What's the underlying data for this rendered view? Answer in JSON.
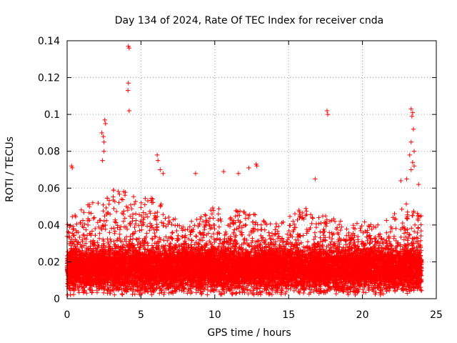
{
  "chart_data": {
    "type": "scatter",
    "title": "Day 134 of 2024, Rate Of TEC Index for receiver cnda",
    "xlabel": "GPS time / hours",
    "ylabel": "ROTI / TECUs",
    "xlim": [
      0,
      25
    ],
    "ylim": [
      0,
      0.14
    ],
    "x_ticks": [
      0,
      5,
      10,
      15,
      20,
      25
    ],
    "y_ticks": [
      0,
      0.02,
      0.04,
      0.06,
      0.08,
      0.1,
      0.12,
      0.14
    ],
    "x_tick_labels": [
      "0",
      "5",
      "10",
      "15",
      "20",
      "25"
    ],
    "y_tick_labels": [
      "0",
      "0.02",
      "0.04",
      "0.06",
      "0.08",
      "0.1",
      "0.12",
      "0.14"
    ],
    "grid": true,
    "marker": "plus",
    "color": "#ff0000",
    "point_count": 12000,
    "time_range": [
      0,
      24
    ],
    "baseline": {
      "center": 0.016,
      "spread": 0.0055,
      "min": 0.002
    },
    "envelope": [
      {
        "x": 0.0,
        "y": 0.045
      },
      {
        "x": 1.0,
        "y": 0.05
      },
      {
        "x": 2.0,
        "y": 0.055
      },
      {
        "x": 3.0,
        "y": 0.06
      },
      {
        "x": 4.0,
        "y": 0.058
      },
      {
        "x": 5.0,
        "y": 0.055
      },
      {
        "x": 6.0,
        "y": 0.055
      },
      {
        "x": 7.0,
        "y": 0.045
      },
      {
        "x": 8.0,
        "y": 0.042
      },
      {
        "x": 9.0,
        "y": 0.045
      },
      {
        "x": 10.0,
        "y": 0.05
      },
      {
        "x": 11.0,
        "y": 0.048
      },
      {
        "x": 12.0,
        "y": 0.05
      },
      {
        "x": 13.0,
        "y": 0.045
      },
      {
        "x": 14.0,
        "y": 0.04
      },
      {
        "x": 15.0,
        "y": 0.045
      },
      {
        "x": 16.0,
        "y": 0.05
      },
      {
        "x": 17.0,
        "y": 0.045
      },
      {
        "x": 18.0,
        "y": 0.045
      },
      {
        "x": 19.0,
        "y": 0.04
      },
      {
        "x": 20.0,
        "y": 0.042
      },
      {
        "x": 21.0,
        "y": 0.04
      },
      {
        "x": 22.0,
        "y": 0.045
      },
      {
        "x": 23.0,
        "y": 0.052
      },
      {
        "x": 24.0,
        "y": 0.045
      }
    ],
    "outliers": [
      {
        "x": 0.3,
        "y": 0.072
      },
      {
        "x": 0.35,
        "y": 0.071
      },
      {
        "x": 2.35,
        "y": 0.09
      },
      {
        "x": 2.45,
        "y": 0.088
      },
      {
        "x": 2.5,
        "y": 0.085
      },
      {
        "x": 2.55,
        "y": 0.097
      },
      {
        "x": 2.6,
        "y": 0.095
      },
      {
        "x": 2.5,
        "y": 0.08
      },
      {
        "x": 2.4,
        "y": 0.075
      },
      {
        "x": 4.15,
        "y": 0.137
      },
      {
        "x": 4.2,
        "y": 0.136
      },
      {
        "x": 4.15,
        "y": 0.117
      },
      {
        "x": 4.12,
        "y": 0.113
      },
      {
        "x": 4.2,
        "y": 0.102
      },
      {
        "x": 6.1,
        "y": 0.078
      },
      {
        "x": 6.15,
        "y": 0.075
      },
      {
        "x": 6.3,
        "y": 0.07
      },
      {
        "x": 6.5,
        "y": 0.068
      },
      {
        "x": 8.7,
        "y": 0.068
      },
      {
        "x": 10.6,
        "y": 0.069
      },
      {
        "x": 11.6,
        "y": 0.068
      },
      {
        "x": 12.3,
        "y": 0.071
      },
      {
        "x": 12.8,
        "y": 0.073
      },
      {
        "x": 12.85,
        "y": 0.072
      },
      {
        "x": 17.6,
        "y": 0.102
      },
      {
        "x": 17.65,
        "y": 0.1
      },
      {
        "x": 16.8,
        "y": 0.065
      },
      {
        "x": 23.3,
        "y": 0.103
      },
      {
        "x": 23.4,
        "y": 0.101
      },
      {
        "x": 23.35,
        "y": 0.099
      },
      {
        "x": 23.45,
        "y": 0.092
      },
      {
        "x": 23.3,
        "y": 0.085
      },
      {
        "x": 23.5,
        "y": 0.08
      },
      {
        "x": 23.2,
        "y": 0.078
      },
      {
        "x": 23.4,
        "y": 0.074
      },
      {
        "x": 23.5,
        "y": 0.072
      },
      {
        "x": 23.3,
        "y": 0.07
      },
      {
        "x": 22.6,
        "y": 0.064
      },
      {
        "x": 23.0,
        "y": 0.065
      },
      {
        "x": 23.8,
        "y": 0.062
      }
    ]
  }
}
